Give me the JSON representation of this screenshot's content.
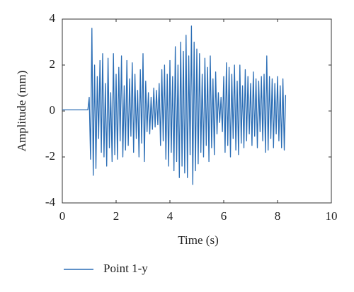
{
  "chart_data": {
    "type": "line",
    "xlabel": "Time (s)",
    "ylabel": "Amplitude (mm)",
    "xlim": [
      0,
      10
    ],
    "xticks": [
      0,
      2,
      4,
      6,
      8,
      10
    ],
    "ylim": [
      -4,
      4
    ],
    "yticks": [
      -4,
      -2,
      0,
      2,
      4
    ],
    "legend": "bottom-left",
    "x": [
      0,
      0.5,
      0.95,
      1,
      1.05,
      1.1,
      1.15,
      1.2,
      1.25,
      1.3,
      1.35,
      1.4,
      1.45,
      1.5,
      1.55,
      1.6,
      1.65,
      1.7,
      1.75,
      1.8,
      1.85,
      1.9,
      1.95,
      2,
      2.05,
      2.1,
      2.15,
      2.2,
      2.25,
      2.3,
      2.35,
      2.4,
      2.45,
      2.5,
      2.55,
      2.6,
      2.65,
      2.7,
      2.75,
      2.8,
      2.85,
      2.9,
      2.95,
      3,
      3.05,
      3.1,
      3.15,
      3.2,
      3.25,
      3.3,
      3.35,
      3.4,
      3.45,
      3.5,
      3.55,
      3.6,
      3.65,
      3.7,
      3.75,
      3.8,
      3.85,
      3.9,
      3.95,
      4,
      4.05,
      4.1,
      4.15,
      4.2,
      4.25,
      4.3,
      4.35,
      4.4,
      4.45,
      4.5,
      4.55,
      4.6,
      4.65,
      4.7,
      4.75,
      4.8,
      4.85,
      4.9,
      4.95,
      5,
      5.05,
      5.1,
      5.15,
      5.2,
      5.25,
      5.3,
      5.35,
      5.4,
      5.45,
      5.5,
      5.55,
      5.6,
      5.65,
      5.7,
      5.75,
      5.8,
      5.85,
      5.9,
      5.95,
      6,
      6.05,
      6.1,
      6.15,
      6.2,
      6.25,
      6.3,
      6.35,
      6.4,
      6.45,
      6.5,
      6.55,
      6.6,
      6.65,
      6.7,
      6.75,
      6.8,
      6.85,
      6.9,
      6.95,
      7,
      7.05,
      7.1,
      7.15,
      7.2,
      7.25,
      7.3,
      7.35,
      7.4,
      7.45,
      7.5,
      7.55,
      7.6,
      7.65,
      7.7,
      7.75,
      7.8,
      7.85,
      7.9,
      7.95,
      8,
      8.05,
      8.1,
      8.15,
      8.2,
      8.25,
      8.3
    ],
    "series": [
      {
        "name": "Point 1-y",
        "color": "#2a6db5",
        "values": [
          0.05,
          0.05,
          0.05,
          0.6,
          -2.1,
          3.6,
          -2.8,
          2.0,
          -2.5,
          1.5,
          -1.2,
          2.2,
          -1.8,
          2.5,
          -2.0,
          1.2,
          -2.4,
          2.3,
          -1.6,
          0.8,
          -2.2,
          2.5,
          -1.9,
          1.6,
          -2.1,
          1.9,
          -1.3,
          2.4,
          -2.0,
          1.1,
          -1.7,
          2.2,
          -1.5,
          1.4,
          -1.1,
          2.1,
          -1.8,
          1.6,
          -1.2,
          0.9,
          -2.0,
          1.8,
          -1.4,
          2.5,
          -2.2,
          1.3,
          -0.9,
          0.8,
          -1.0,
          0.6,
          -0.8,
          1.0,
          -0.7,
          0.9,
          -0.6,
          1.2,
          -1.5,
          1.8,
          -1.3,
          2.0,
          -2.1,
          1.6,
          -2.4,
          2.2,
          -1.8,
          1.5,
          -2.6,
          2.8,
          -2.2,
          2.0,
          -2.9,
          3.0,
          -2.4,
          2.6,
          -2.7,
          3.3,
          -2.9,
          2.4,
          -1.9,
          3.7,
          -3.2,
          3.0,
          -2.6,
          2.7,
          -2.3,
          2.5,
          -1.8,
          1.6,
          -2.0,
          2.3,
          -1.5,
          1.9,
          -2.2,
          2.4,
          -1.6,
          1.4,
          -1.9,
          1.7,
          -1.0,
          0.8,
          -0.5,
          0.6,
          -0.9,
          1.5,
          -1.8,
          2.1,
          -1.5,
          1.9,
          -2.0,
          1.6,
          -1.2,
          2.0,
          -1.7,
          1.3,
          -1.9,
          2.0,
          -1.4,
          1.1,
          -1.6,
          1.8,
          -1.3,
          1.5,
          -1.0,
          1.2,
          -1.5,
          1.7,
          -1.1,
          1.4,
          -1.6,
          1.3,
          -0.9,
          1.5,
          -1.3,
          1.6,
          -1.8,
          2.4,
          -1.7,
          1.5,
          -1.2,
          1.4,
          -1.6,
          1.2,
          -1.0,
          1.5,
          -1.3,
          1.1,
          -1.6,
          1.4,
          -1.7,
          0.7
        ]
      }
    ]
  }
}
